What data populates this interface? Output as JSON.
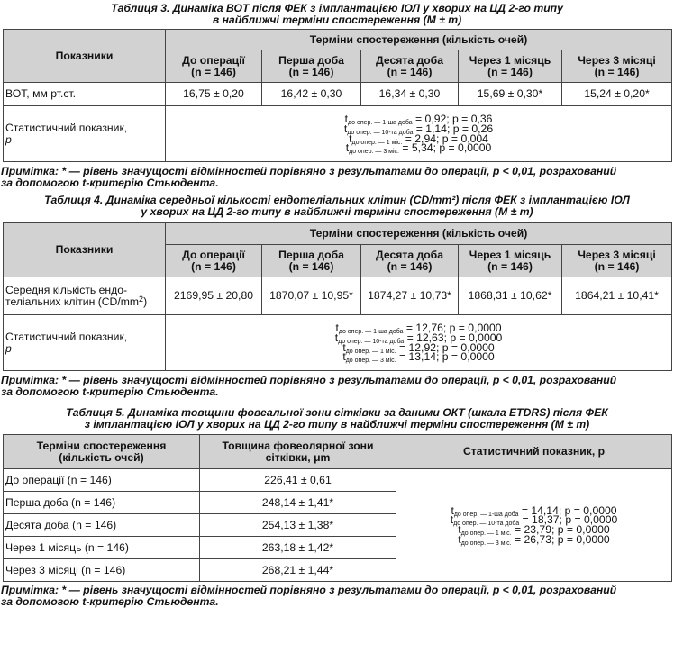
{
  "t3": {
    "caption_l1": "Таблиця 3.  Динаміка ВОТ після ФЕК з імплантацією ІОЛ у хворих на ЦД 2-го типу",
    "caption_l2": "в найближчі терміни спостереження (M ± m)",
    "col_indicators": "Показники",
    "col_terms": "Терміни спостереження (кількість очей)",
    "periods": [
      {
        "name": "До операції",
        "n": "(n = 146)"
      },
      {
        "name": "Перша доба",
        "n": "(n = 146)"
      },
      {
        "name": "Десята доба",
        "n": "(n = 146)"
      },
      {
        "name": "Через 1 місяць",
        "n": "(n = 146)"
      },
      {
        "name": "Через 3 місяці",
        "n": "(n = 146)"
      }
    ],
    "row_label": "ВОТ, мм рт.ст.",
    "values": [
      "16,75 ± 0,20",
      "16,42 ± 0,30",
      "16,34 ± 0,30",
      "15,69 ± 0,30*",
      "15,24 ± 0,20*"
    ],
    "stat_label_l1": "Статистичний показник,",
    "stat_label_l2": "р",
    "stats": [
      {
        "sub": "до опер. — 1-ша доба",
        "text": " = 0,92; р = 0,36"
      },
      {
        "sub": "до опер. — 10-та доба",
        "text": " = 1,14; р = 0,26"
      },
      {
        "sub": "до опер. — 1 міс.",
        "text": " = 2,94; р = 0,004"
      },
      {
        "sub": "до опер. — 3 міс.",
        "text": " = 5,34; р = 0,0000"
      }
    ],
    "note_l1": "Примітка: * — рівень значущості відмінностей порівняно з результатами до операції, р < 0,01, розрахований",
    "note_l2": "за допомогою t-критерію Стьюдента."
  },
  "t4": {
    "caption_l1": "Таблиця 4.  Динаміка середньої кількості ендотеліальних клітин (CD/mm²) після ФЕК з імплантацією ІОЛ",
    "caption_l2": "у хворих на ЦД 2-го типу в найближчі терміни спостереження (M ± m)",
    "col_indicators": "Показники",
    "col_terms": "Терміни спостереження (кількість очей)",
    "periods": [
      {
        "name": "До операції",
        "n": "(n = 146)"
      },
      {
        "name": "Перша доба",
        "n": "(n = 146)"
      },
      {
        "name": "Десята доба",
        "n": "(n = 146)"
      },
      {
        "name": "Через 1 місяць",
        "n": "(n = 146)"
      },
      {
        "name": "Через 3 місяці",
        "n": "(n = 146)"
      }
    ],
    "row_label_l1": "Середня кількість ендо-",
    "row_label_l2": "теліальних клітин (CD/mm",
    "row_label_sup": "2",
    "row_label_end": ")",
    "values": [
      "2169,95 ± 20,80",
      "1870,07 ± 10,95*",
      "1874,27 ± 10,73*",
      "1868,31 ± 10,62*",
      "1864,21 ± 10,41*"
    ],
    "stat_label_l1": "Статистичний показник,",
    "stat_label_l2": "р",
    "stats": [
      {
        "sub": "до опер. — 1-ша доба",
        "text": " = 12,76; р = 0,0000"
      },
      {
        "sub": "до опер. — 10-та доба",
        "text": " = 12,63; р = 0,0000"
      },
      {
        "sub": "до опер. — 1 міс.",
        "text": " = 12,92; р = 0,0000"
      },
      {
        "sub": "до опер. — 3 міс.",
        "text": " = 13,14; р = 0,0000"
      }
    ],
    "note_l1": "Примітка: * — рівень значущості відмінностей порівняно з результатами до операції, р < 0,01, розрахований",
    "note_l2": "за допомогою t-критерію Стьюдента."
  },
  "t5": {
    "caption_l1": "Таблиця 5.  Динаміка товщини фовеальної зони сітківки за даними ОКТ (шкала ETDRS) після ФЕК",
    "caption_l2": "з імплантацією ІОЛ у хворих на ЦД 2-го типу в найближчі терміни спостереження (M ± m)",
    "col1_l1": "Терміни спостереження",
    "col1_l2": "(кількість очей)",
    "col2_l1": "Товщина фовеолярної зони",
    "col2_l2": "сітківки, μm",
    "col3": "Статистичний показник, р",
    "rows": [
      {
        "term": "До операції (n = 146)",
        "value": "226,41 ± 0,61"
      },
      {
        "term": "Перша доба (n = 146)",
        "value": "248,14 ± 1,41*"
      },
      {
        "term": "Десята доба (n = 146)",
        "value": "254,13 ± 1,38*"
      },
      {
        "term": "Через 1 місяць (n = 146)",
        "value": "263,18 ± 1,42*"
      },
      {
        "term": "Через 3 місяці (n = 146)",
        "value": "268,21 ± 1,44*"
      }
    ],
    "stats": [
      {
        "sub": "до опер. — 1-ша доба",
        "text": " = 14,14; р = 0,0000"
      },
      {
        "sub": "до опер. — 10-та доба",
        "text": " = 18,37; р = 0,0000"
      },
      {
        "sub": "до опер. — 1 міс.",
        "text": " = 23,79; р = 0,0000"
      },
      {
        "sub": "до опер. — 3 міс.",
        "text": " = 26,73; р = 0,0000"
      }
    ],
    "note_l1": "Примітка: * — рівень значущості відмінностей порівняно з результатами до операції, р < 0,01, розрахований",
    "note_l2": "за допомогою t-критерію Стьюдента."
  },
  "t_letter": "t"
}
